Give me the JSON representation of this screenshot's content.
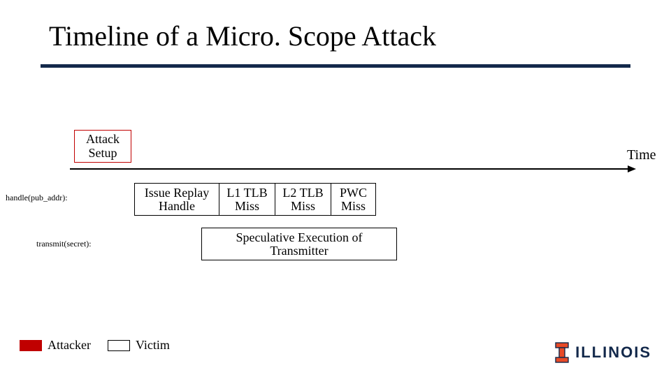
{
  "title": "Timeline of a Micro. Scope Attack",
  "colors": {
    "rule": "#13294b",
    "attacker": "#c00000",
    "victim_border": "#000000",
    "background": "#ffffff",
    "text": "#000000",
    "logo_block": "#e84a27",
    "logo_text": "#13294b"
  },
  "timeline": {
    "axis_label": "Time",
    "attack_setup": "Attack\nSetup"
  },
  "rows": {
    "handle_label": "handle(pub_addr):",
    "transmit_label": "transmit(secret):"
  },
  "steps": {
    "issue": "Issue Replay\nHandle",
    "l1": "L1 TLB\nMiss",
    "l2": "L2 TLB\nMiss",
    "pwc": "PWC\nMiss"
  },
  "spec_box": "Speculative Execution of\nTransmitter",
  "legend": {
    "attacker": "Attacker",
    "victim": "Victim"
  },
  "logo": {
    "wordmark": "ILLINOIS"
  },
  "layout": {
    "slide_w": 960,
    "slide_h": 540,
    "title_fontsize": 40,
    "body_fontsize": 18,
    "rowlabel_fontsize": 12
  }
}
